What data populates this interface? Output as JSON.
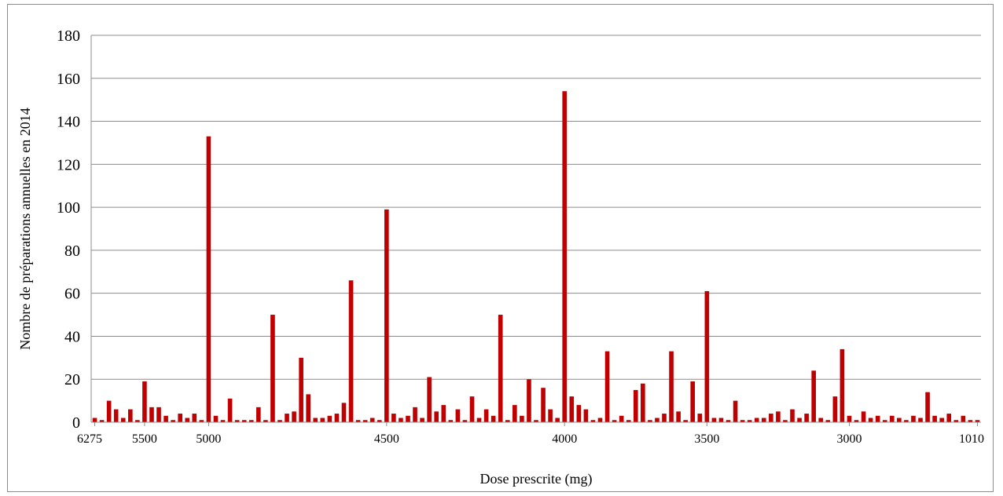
{
  "chart_data": {
    "type": "bar",
    "title": "",
    "xlabel": "Dose prescrite (mg)",
    "ylabel": "Nombre de préparations annuelles en 2014",
    "ylim": [
      0,
      180
    ],
    "yticks": [
      0,
      20,
      40,
      60,
      80,
      100,
      120,
      140,
      160,
      180
    ],
    "xtick_labels": [
      "6275",
      "5500",
      "5000",
      "4500",
      "4000",
      "3500",
      "3000",
      "1010"
    ],
    "grid": true,
    "bar_color": "#C00000",
    "values": [
      2,
      1,
      10,
      6,
      2,
      6,
      1,
      19,
      7,
      7,
      3,
      1,
      4,
      2,
      4,
      1,
      133,
      3,
      1,
      11,
      1,
      1,
      1,
      7,
      1,
      50,
      1,
      4,
      5,
      30,
      13,
      2,
      2,
      3,
      4,
      9,
      66,
      1,
      1,
      2,
      1,
      99,
      4,
      2,
      3,
      7,
      2,
      21,
      5,
      8,
      1,
      6,
      1,
      12,
      2,
      6,
      3,
      50,
      1,
      8,
      3,
      20,
      1,
      16,
      6,
      2,
      154,
      12,
      8,
      6,
      1,
      2,
      33,
      1,
      3,
      1,
      15,
      18,
      1,
      2,
      4,
      33,
      5,
      1,
      19,
      4,
      61,
      2,
      2,
      1,
      10,
      1,
      1,
      2,
      2,
      4,
      5,
      1,
      6,
      2,
      4,
      24,
      2,
      1,
      12,
      34,
      3,
      1,
      5,
      2,
      3,
      1,
      3,
      2,
      1,
      3,
      2,
      14,
      3,
      2,
      4,
      1,
      3,
      1,
      1
    ]
  }
}
